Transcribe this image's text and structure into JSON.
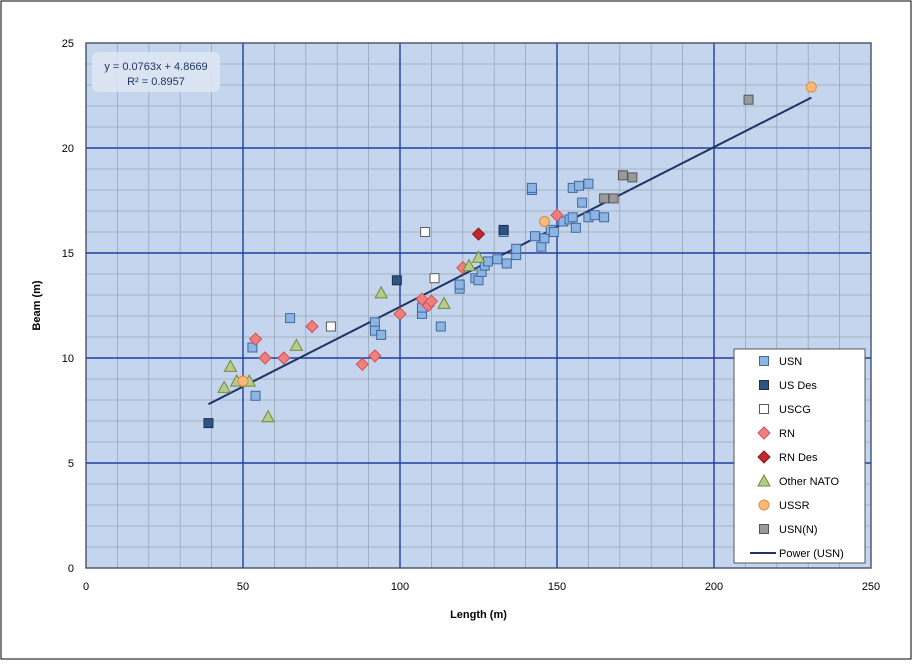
{
  "chart_data": {
    "type": "scatter",
    "xlabel": "Length (m)",
    "ylabel": "Beam (m)",
    "xlim": [
      0,
      250
    ],
    "ylim": [
      0,
      25
    ],
    "x_ticks": [
      "0",
      "50",
      "100",
      "150",
      "200",
      "250"
    ],
    "y_ticks": [
      "0",
      "5",
      "10",
      "15",
      "20",
      "25"
    ],
    "grid": true,
    "legend_position": "bottom-right",
    "annotation": {
      "equation": "y = 0.0763x + 4.8669",
      "r_squared": "R² = 0.8957"
    },
    "colors": {
      "plot_bg": "#c5d5ee",
      "major_grid": "#1f3fa0",
      "minor_grid": "#9aa6b5",
      "trend": "#1f3564"
    },
    "series": [
      {
        "name": "USN",
        "marker": "square",
        "fill": "#8eb4e3",
        "stroke": "#3d6a9e",
        "points": [
          [
            53,
            10.5
          ],
          [
            54,
            8.2
          ],
          [
            65,
            11.9
          ],
          [
            92,
            11.7
          ],
          [
            92,
            11.3
          ],
          [
            94,
            11.1
          ],
          [
            107,
            12.1
          ],
          [
            107,
            12.4
          ],
          [
            113,
            11.5
          ],
          [
            119,
            13.3
          ],
          [
            119,
            13.5
          ],
          [
            124,
            13.8
          ],
          [
            125,
            13.7
          ],
          [
            126,
            14.1
          ],
          [
            127,
            14.4
          ],
          [
            128,
            14.6
          ],
          [
            131,
            14.7
          ],
          [
            133,
            16.0
          ],
          [
            134,
            14.5
          ],
          [
            137,
            14.9
          ],
          [
            137,
            15.2
          ],
          [
            142,
            18.0
          ],
          [
            142,
            18.1
          ],
          [
            143,
            15.8
          ],
          [
            145,
            15.3
          ],
          [
            146,
            15.7
          ],
          [
            148,
            16.1
          ],
          [
            149,
            16.0
          ],
          [
            152,
            16.5
          ],
          [
            154,
            16.6
          ],
          [
            155,
            18.1
          ],
          [
            155,
            16.7
          ],
          [
            156,
            16.2
          ],
          [
            157,
            18.2
          ],
          [
            158,
            17.4
          ],
          [
            160,
            16.7
          ],
          [
            160,
            18.3
          ],
          [
            162,
            16.8
          ],
          [
            165,
            16.7
          ]
        ]
      },
      {
        "name": "US Des",
        "marker": "square",
        "fill": "#2e5486",
        "stroke": "#1a3152",
        "points": [
          [
            39,
            6.9
          ],
          [
            99,
            13.7
          ],
          [
            133,
            16.1
          ]
        ]
      },
      {
        "name": "USCG",
        "marker": "square",
        "fill": "#ffffff",
        "stroke": "#5a5a5a",
        "points": [
          [
            78,
            11.5
          ],
          [
            108,
            16.0
          ],
          [
            111,
            13.8
          ]
        ]
      },
      {
        "name": "RN",
        "marker": "diamond",
        "fill": "#f08080",
        "stroke": "#d05050",
        "points": [
          [
            50,
            8.9
          ],
          [
            54,
            10.9
          ],
          [
            57,
            10.0
          ],
          [
            63,
            10.0
          ],
          [
            72,
            11.5
          ],
          [
            88,
            9.7
          ],
          [
            92,
            10.1
          ],
          [
            100,
            12.1
          ],
          [
            107,
            12.8
          ],
          [
            109,
            12.5
          ],
          [
            110,
            12.7
          ],
          [
            120,
            14.3
          ],
          [
            150,
            16.8
          ]
        ]
      },
      {
        "name": "RN Des",
        "marker": "diamond",
        "fill": "#c0282d",
        "stroke": "#8a1a1e",
        "points": [
          [
            125,
            15.9
          ]
        ]
      },
      {
        "name": "Other NATO",
        "marker": "triangle",
        "fill": "#b8cc8a",
        "stroke": "#6f8a3c",
        "points": [
          [
            44,
            8.6
          ],
          [
            46,
            9.6
          ],
          [
            48,
            8.9
          ],
          [
            52,
            8.9
          ],
          [
            58,
            7.2
          ],
          [
            67,
            10.6
          ],
          [
            94,
            13.1
          ],
          [
            114,
            12.6
          ],
          [
            122,
            14.4
          ],
          [
            125,
            14.8
          ]
        ]
      },
      {
        "name": "USSR",
        "marker": "circle",
        "fill": "#fbb87a",
        "stroke": "#e08a40",
        "points": [
          [
            50,
            8.9
          ],
          [
            146,
            16.5
          ],
          [
            231,
            22.9
          ]
        ]
      },
      {
        "name": "USN(N)",
        "marker": "square",
        "fill": "#9a9a9a",
        "stroke": "#555555",
        "points": [
          [
            165,
            17.6
          ],
          [
            168,
            17.6
          ],
          [
            171,
            18.7
          ],
          [
            174,
            18.6
          ],
          [
            211,
            22.3
          ]
        ]
      }
    ],
    "trendline": {
      "name": "Power (USN)",
      "x": [
        39,
        231
      ],
      "y": [
        7.8,
        22.4
      ]
    }
  }
}
